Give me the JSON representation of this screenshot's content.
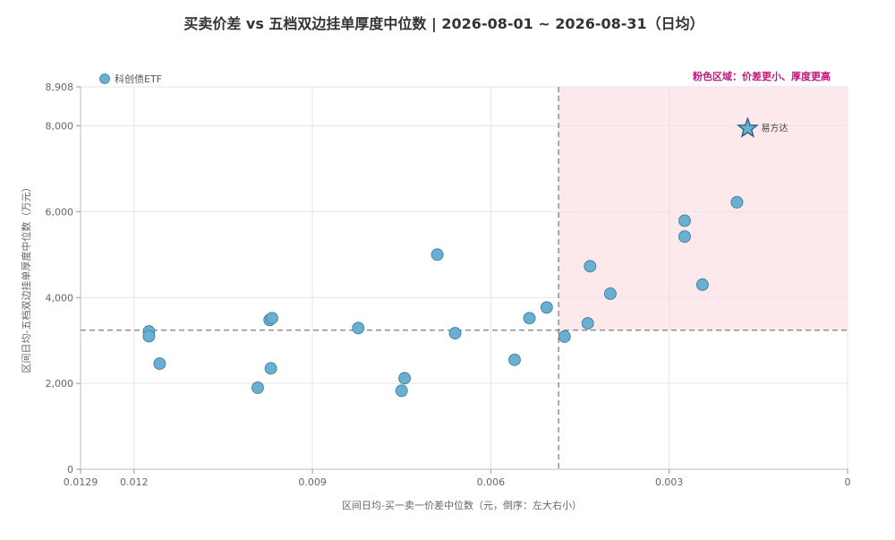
{
  "colors": {
    "point_fill": "#6aaed0",
    "point_stroke": "#3f7fa6",
    "region_fill": "#fde8ec",
    "annotation": "#c2187f",
    "grid": "#e6e6e6",
    "ref_line": "#888888"
  },
  "chart_data": {
    "type": "scatter",
    "title": "买卖价差 vs 五档双边挂单厚度中位数 | 2026-08-01 ~ 2026-08-31（日均）",
    "xlabel": "区间日均-买一卖一价差中位数（元，倒序：左大右小）",
    "ylabel": "区间日均-五档双边挂单厚度中位数（万元）",
    "xlim": [
      0.0129,
      0
    ],
    "x_reversed": true,
    "ylim": [
      0,
      8908
    ],
    "x_ticks": [
      0.0129,
      0.012,
      0.009,
      0.006,
      0.003,
      0
    ],
    "x_tick_labels": [
      "0.0129",
      "0.012",
      "0.009",
      "0.006",
      "0.003",
      "0"
    ],
    "y_ticks": [
      0,
      2000,
      4000,
      6000,
      8000,
      8908
    ],
    "y_tick_labels": [
      "0",
      "2,000",
      "4,000",
      "6,000",
      "8,000",
      "8,908"
    ],
    "grid": true,
    "legend_position": "top-left",
    "series": [
      {
        "name": "科创债ETF",
        "x": [
          0.01175,
          0.01175,
          0.01157,
          0.00992,
          0.00972,
          0.00968,
          0.0097,
          0.00823,
          0.0075,
          0.00745,
          0.0069,
          0.0066,
          0.0056,
          0.00535,
          0.00506,
          0.00476,
          0.00437,
          0.00433,
          0.00399,
          0.00274,
          0.00274,
          0.00244,
          0.00186
        ],
        "y": [
          3210,
          3100,
          2460,
          1900,
          3480,
          3520,
          2350,
          3290,
          1830,
          2120,
          5000,
          3170,
          2550,
          3520,
          3770,
          3090,
          3400,
          4730,
          4090,
          5790,
          5420,
          4300,
          6220
        ]
      }
    ],
    "reference_lines": {
      "x": 0.00486,
      "y": 3240
    },
    "highlight_region": {
      "label": "粉色区域：价差更小、厚度更高",
      "x_from": 0.00486,
      "x_to": 0,
      "y_from": 3240,
      "y_to": 8908
    },
    "highlight_point": {
      "label": "易方达",
      "x": 0.00168,
      "y": 7940
    }
  }
}
